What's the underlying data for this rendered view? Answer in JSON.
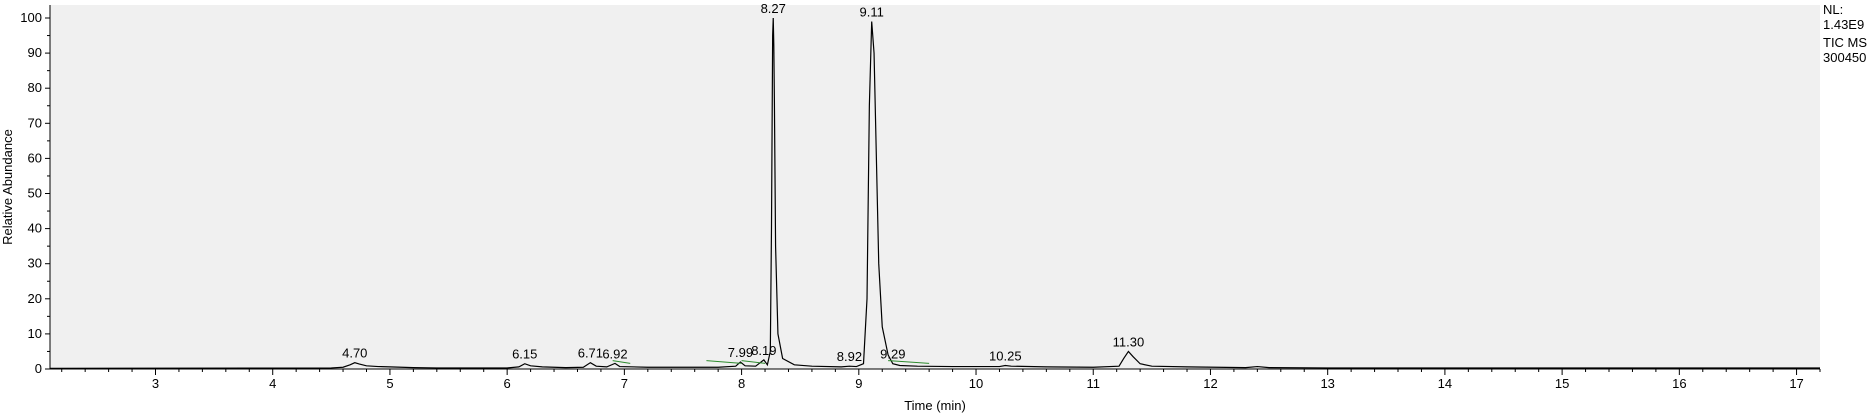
{
  "chart_data": {
    "type": "line",
    "xlabel": "Time (min)",
    "ylabel": "Relative Abundance",
    "xlim": [
      2.1,
      17.2
    ],
    "ylim": [
      0,
      100
    ],
    "x_ticks": [
      3,
      4,
      5,
      6,
      7,
      8,
      9,
      10,
      11,
      12,
      13,
      14,
      15,
      16,
      17
    ],
    "y_ticks": [
      0,
      10,
      20,
      30,
      40,
      50,
      60,
      70,
      80,
      90,
      100
    ],
    "grid": false,
    "colors": {
      "trace": "#000000",
      "baseline_marker": "#2e8b2e",
      "plot_bg": "#f0f0f0",
      "axis": "#000000"
    },
    "peaks": [
      {
        "label": "4.70",
        "rt": 4.7,
        "height": 1.8
      },
      {
        "label": "6.15",
        "rt": 6.15,
        "height": 1.5
      },
      {
        "label": "6.71",
        "rt": 6.71,
        "height": 1.8
      },
      {
        "label": "6.92",
        "rt": 6.92,
        "height": 1.6
      },
      {
        "label": "7.99",
        "rt": 7.99,
        "height": 2.0
      },
      {
        "label": "8.19",
        "rt": 8.19,
        "height": 2.6
      },
      {
        "label": "8.27",
        "rt": 8.27,
        "height": 100
      },
      {
        "label": "8.92",
        "rt": 8.92,
        "height": 0.8
      },
      {
        "label": "9.11",
        "rt": 9.11,
        "height": 99
      },
      {
        "label": "9.29",
        "rt": 9.29,
        "height": 1.5
      },
      {
        "label": "10.25",
        "rt": 10.25,
        "height": 1.0
      },
      {
        "label": "11.30",
        "rt": 11.3,
        "height": 5.0
      }
    ],
    "trace": [
      [
        2.1,
        0.2
      ],
      [
        4.5,
        0.3
      ],
      [
        4.6,
        0.5
      ],
      [
        4.66,
        1.2
      ],
      [
        4.7,
        1.8
      ],
      [
        4.74,
        1.4
      ],
      [
        4.8,
        0.9
      ],
      [
        4.9,
        0.7
      ],
      [
        5.0,
        0.6
      ],
      [
        5.1,
        0.5
      ],
      [
        5.2,
        0.4
      ],
      [
        5.4,
        0.3
      ],
      [
        6.0,
        0.3
      ],
      [
        6.1,
        0.6
      ],
      [
        6.15,
        1.5
      ],
      [
        6.2,
        0.9
      ],
      [
        6.3,
        0.6
      ],
      [
        6.5,
        0.4
      ],
      [
        6.65,
        0.5
      ],
      [
        6.71,
        1.8
      ],
      [
        6.76,
        0.8
      ],
      [
        6.85,
        0.6
      ],
      [
        6.92,
        1.6
      ],
      [
        6.96,
        0.7
      ],
      [
        7.2,
        0.5
      ],
      [
        7.8,
        0.5
      ],
      [
        7.95,
        0.8
      ],
      [
        7.99,
        2.0
      ],
      [
        8.03,
        0.9
      ],
      [
        8.12,
        0.8
      ],
      [
        8.19,
        2.6
      ],
      [
        8.22,
        1.2
      ],
      [
        8.245,
        5
      ],
      [
        8.255,
        40
      ],
      [
        8.265,
        95
      ],
      [
        8.27,
        100
      ],
      [
        8.275,
        92
      ],
      [
        8.28,
        76
      ],
      [
        8.29,
        35
      ],
      [
        8.31,
        10
      ],
      [
        8.35,
        3
      ],
      [
        8.45,
        1.2
      ],
      [
        8.6,
        0.8
      ],
      [
        8.85,
        0.6
      ],
      [
        8.92,
        0.8
      ],
      [
        8.98,
        0.7
      ],
      [
        9.04,
        1.5
      ],
      [
        9.07,
        20
      ],
      [
        9.09,
        75
      ],
      [
        9.11,
        99
      ],
      [
        9.13,
        90
      ],
      [
        9.15,
        60
      ],
      [
        9.17,
        30
      ],
      [
        9.2,
        12
      ],
      [
        9.25,
        4
      ],
      [
        9.29,
        1.5
      ],
      [
        9.35,
        1.0
      ],
      [
        9.5,
        0.8
      ],
      [
        9.8,
        0.7
      ],
      [
        10.2,
        0.7
      ],
      [
        10.25,
        1.0
      ],
      [
        10.3,
        0.8
      ],
      [
        10.6,
        0.6
      ],
      [
        11.0,
        0.5
      ],
      [
        11.22,
        0.8
      ],
      [
        11.26,
        3.0
      ],
      [
        11.3,
        5.0
      ],
      [
        11.34,
        3.5
      ],
      [
        11.4,
        1.5
      ],
      [
        11.5,
        0.8
      ],
      [
        11.8,
        0.6
      ],
      [
        12.3,
        0.4
      ],
      [
        12.4,
        0.7
      ],
      [
        12.5,
        0.4
      ],
      [
        13.0,
        0.3
      ],
      [
        17.2,
        0.3
      ]
    ]
  },
  "info": {
    "nl_label": "NL:",
    "nl_value": "1.43E9",
    "filter": "TIC  MS",
    "sample": "300450"
  }
}
